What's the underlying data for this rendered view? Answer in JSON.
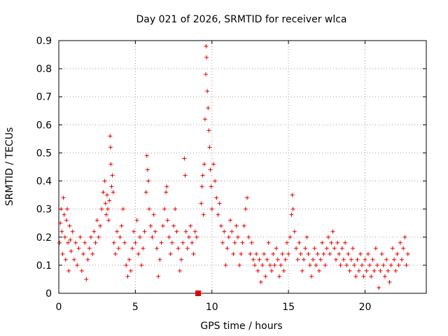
{
  "chart_data": {
    "type": "scatter",
    "title": "Day 021 of 2026, SRMTID for receiver wlca",
    "xlabel": "GPS time / hours",
    "ylabel": "SRMTID / TECUs",
    "xlim": [
      0,
      24
    ],
    "ylim": [
      0,
      0.9
    ],
    "xticks": [
      "0",
      "5",
      "10",
      "15",
      "20"
    ],
    "xtick_values": [
      0,
      5,
      10,
      15,
      20
    ],
    "yticks": [
      "0",
      "0.1",
      "0.2",
      "0.3",
      "0.4",
      "0.5",
      "0.6",
      "0.7",
      "0.8",
      "0.9"
    ],
    "ytick_values": [
      0,
      0.1,
      0.2,
      0.3,
      0.4,
      0.5,
      0.6,
      0.7,
      0.8,
      0.9
    ],
    "grid": true,
    "marker": "+",
    "color": "#e00000",
    "gap_marker": {
      "x": 9.1,
      "y": 0,
      "shape": "square"
    },
    "series": [
      {
        "name": "SRMTID",
        "points": [
          [
            0.05,
            0.18
          ],
          [
            0.1,
            0.25
          ],
          [
            0.15,
            0.3
          ],
          [
            0.2,
            0.22
          ],
          [
            0.25,
            0.14
          ],
          [
            0.3,
            0.34
          ],
          [
            0.35,
            0.28
          ],
          [
            0.4,
            0.2
          ],
          [
            0.45,
            0.12
          ],
          [
            0.5,
            0.26
          ],
          [
            0.55,
            0.3
          ],
          [
            0.6,
            0.18
          ],
          [
            0.65,
            0.08
          ],
          [
            0.7,
            0.24
          ],
          [
            0.75,
            0.19
          ],
          [
            0.8,
            0.15
          ],
          [
            0.9,
            0.22
          ],
          [
            1.0,
            0.12
          ],
          [
            1.1,
            0.18
          ],
          [
            1.2,
            0.1
          ],
          [
            1.3,
            0.16
          ],
          [
            1.4,
            0.2
          ],
          [
            1.5,
            0.08
          ],
          [
            1.6,
            0.14
          ],
          [
            1.7,
            0.18
          ],
          [
            1.8,
            0.05
          ],
          [
            1.9,
            0.12
          ],
          [
            2.0,
            0.16
          ],
          [
            2.1,
            0.2
          ],
          [
            2.2,
            0.14
          ],
          [
            2.3,
            0.22
          ],
          [
            2.4,
            0.18
          ],
          [
            2.5,
            0.26
          ],
          [
            2.6,
            0.2
          ],
          [
            2.7,
            0.24
          ],
          [
            2.8,
            0.3
          ],
          [
            2.9,
            0.36
          ],
          [
            3.0,
            0.4
          ],
          [
            3.05,
            0.32
          ],
          [
            3.1,
            0.28
          ],
          [
            3.15,
            0.35
          ],
          [
            3.2,
            0.3
          ],
          [
            3.25,
            0.26
          ],
          [
            3.3,
            0.33
          ],
          [
            3.35,
            0.56
          ],
          [
            3.38,
            0.52
          ],
          [
            3.4,
            0.46
          ],
          [
            3.45,
            0.38
          ],
          [
            3.5,
            0.42
          ],
          [
            3.55,
            0.36
          ],
          [
            3.6,
            0.18
          ],
          [
            3.7,
            0.14
          ],
          [
            3.8,
            0.22
          ],
          [
            3.9,
            0.16
          ],
          [
            4.0,
            0.2
          ],
          [
            4.1,
            0.24
          ],
          [
            4.2,
            0.3
          ],
          [
            4.3,
            0.18
          ],
          [
            4.4,
            0.1
          ],
          [
            4.5,
            0.06
          ],
          [
            4.6,
            0.12
          ],
          [
            4.7,
            0.08
          ],
          [
            4.8,
            0.16
          ],
          [
            4.9,
            0.22
          ],
          [
            5.0,
            0.18
          ],
          [
            5.1,
            0.26
          ],
          [
            5.2,
            0.14
          ],
          [
            5.3,
            0.2
          ],
          [
            5.4,
            0.1
          ],
          [
            5.5,
            0.16
          ],
          [
            5.6,
            0.22
          ],
          [
            5.7,
            0.36
          ],
          [
            5.75,
            0.49
          ],
          [
            5.8,
            0.44
          ],
          [
            5.85,
            0.4
          ],
          [
            5.9,
            0.3
          ],
          [
            6.0,
            0.24
          ],
          [
            6.1,
            0.2
          ],
          [
            6.2,
            0.28
          ],
          [
            6.3,
            0.22
          ],
          [
            6.4,
            0.16
          ],
          [
            6.5,
            0.06
          ],
          [
            6.6,
            0.12
          ],
          [
            6.7,
            0.18
          ],
          [
            6.8,
            0.24
          ],
          [
            6.9,
            0.3
          ],
          [
            7.0,
            0.36
          ],
          [
            7.05,
            0.38
          ],
          [
            7.1,
            0.26
          ],
          [
            7.2,
            0.2
          ],
          [
            7.3,
            0.14
          ],
          [
            7.4,
            0.18
          ],
          [
            7.5,
            0.24
          ],
          [
            7.6,
            0.3
          ],
          [
            7.7,
            0.22
          ],
          [
            7.8,
            0.16
          ],
          [
            7.9,
            0.08
          ],
          [
            8.0,
            0.12
          ],
          [
            8.1,
            0.18
          ],
          [
            8.2,
            0.48
          ],
          [
            8.25,
            0.42
          ],
          [
            8.3,
            0.22
          ],
          [
            8.4,
            0.16
          ],
          [
            8.5,
            0.2
          ],
          [
            8.6,
            0.24
          ],
          [
            8.7,
            0.18
          ],
          [
            8.8,
            0.14
          ],
          [
            8.9,
            0.22
          ],
          [
            9.0,
            0.2
          ],
          [
            9.3,
            0.32
          ],
          [
            9.35,
            0.38
          ],
          [
            9.4,
            0.42
          ],
          [
            9.45,
            0.28
          ],
          [
            9.5,
            0.46
          ],
          [
            9.55,
            0.62
          ],
          [
            9.6,
            0.78
          ],
          [
            9.62,
            0.88
          ],
          [
            9.65,
            0.84
          ],
          [
            9.7,
            0.72
          ],
          [
            9.75,
            0.66
          ],
          [
            9.8,
            0.58
          ],
          [
            9.85,
            0.52
          ],
          [
            9.9,
            0.44
          ],
          [
            9.95,
            0.38
          ],
          [
            10.0,
            0.3
          ],
          [
            10.1,
            0.46
          ],
          [
            10.2,
            0.4
          ],
          [
            10.3,
            0.34
          ],
          [
            10.4,
            0.28
          ],
          [
            10.5,
            0.32
          ],
          [
            10.6,
            0.24
          ],
          [
            10.7,
            0.18
          ],
          [
            10.8,
            0.22
          ],
          [
            10.9,
            0.1
          ],
          [
            11.0,
            0.16
          ],
          [
            11.1,
            0.2
          ],
          [
            11.2,
            0.26
          ],
          [
            11.3,
            0.22
          ],
          [
            11.4,
            0.14
          ],
          [
            11.5,
            0.18
          ],
          [
            11.6,
            0.24
          ],
          [
            11.7,
            0.2
          ],
          [
            11.8,
            0.1
          ],
          [
            11.9,
            0.14
          ],
          [
            12.0,
            0.18
          ],
          [
            12.1,
            0.24
          ],
          [
            12.2,
            0.3
          ],
          [
            12.3,
            0.34
          ],
          [
            12.4,
            0.2
          ],
          [
            12.5,
            0.14
          ],
          [
            12.6,
            0.18
          ],
          [
            12.7,
            0.12
          ],
          [
            12.8,
            0.1
          ],
          [
            12.9,
            0.14
          ],
          [
            13.0,
            0.08
          ],
          [
            13.1,
            0.12
          ],
          [
            13.2,
            0.04
          ],
          [
            13.3,
            0.1
          ],
          [
            13.4,
            0.14
          ],
          [
            13.5,
            0.06
          ],
          [
            13.6,
            0.12
          ],
          [
            13.7,
            0.18
          ],
          [
            13.8,
            0.1
          ],
          [
            13.9,
            0.08
          ],
          [
            14.0,
            0.14
          ],
          [
            14.1,
            0.1
          ],
          [
            14.2,
            0.16
          ],
          [
            14.3,
            0.12
          ],
          [
            14.4,
            0.06
          ],
          [
            14.5,
            0.1
          ],
          [
            14.6,
            0.14
          ],
          [
            14.7,
            0.08
          ],
          [
            14.8,
            0.12
          ],
          [
            14.9,
            0.18
          ],
          [
            15.0,
            0.14
          ],
          [
            15.1,
            0.2
          ],
          [
            15.2,
            0.28
          ],
          [
            15.25,
            0.35
          ],
          [
            15.3,
            0.3
          ],
          [
            15.4,
            0.22
          ],
          [
            15.5,
            0.16
          ],
          [
            15.6,
            0.12
          ],
          [
            15.7,
            0.18
          ],
          [
            15.8,
            0.14
          ],
          [
            15.9,
            0.08
          ],
          [
            16.0,
            0.12
          ],
          [
            16.1,
            0.16
          ],
          [
            16.2,
            0.2
          ],
          [
            16.3,
            0.14
          ],
          [
            16.4,
            0.1
          ],
          [
            16.5,
            0.06
          ],
          [
            16.6,
            0.12
          ],
          [
            16.7,
            0.16
          ],
          [
            16.8,
            0.1
          ],
          [
            16.9,
            0.14
          ],
          [
            17.0,
            0.08
          ],
          [
            17.1,
            0.12
          ],
          [
            17.2,
            0.18
          ],
          [
            17.3,
            0.14
          ],
          [
            17.4,
            0.1
          ],
          [
            17.5,
            0.16
          ],
          [
            17.6,
            0.2
          ],
          [
            17.7,
            0.14
          ],
          [
            17.8,
            0.18
          ],
          [
            17.9,
            0.22
          ],
          [
            18.0,
            0.16
          ],
          [
            18.1,
            0.12
          ],
          [
            18.2,
            0.18
          ],
          [
            18.3,
            0.14
          ],
          [
            18.4,
            0.1
          ],
          [
            18.5,
            0.16
          ],
          [
            18.6,
            0.12
          ],
          [
            18.7,
            0.18
          ],
          [
            18.8,
            0.1
          ],
          [
            18.9,
            0.14
          ],
          [
            19.0,
            0.08
          ],
          [
            19.1,
            0.12
          ],
          [
            19.2,
            0.16
          ],
          [
            19.3,
            0.1
          ],
          [
            19.4,
            0.06
          ],
          [
            19.5,
            0.12
          ],
          [
            19.6,
            0.08
          ],
          [
            19.7,
            0.14
          ],
          [
            19.8,
            0.1
          ],
          [
            19.9,
            0.06
          ],
          [
            20.0,
            0.12
          ],
          [
            20.1,
            0.08
          ],
          [
            20.2,
            0.14
          ],
          [
            20.3,
            0.1
          ],
          [
            20.4,
            0.06
          ],
          [
            20.5,
            0.12
          ],
          [
            20.6,
            0.08
          ],
          [
            20.7,
            0.16
          ],
          [
            20.8,
            0.1
          ],
          [
            20.9,
            0.02
          ],
          [
            21.0,
            0.08
          ],
          [
            21.1,
            0.14
          ],
          [
            21.2,
            0.1
          ],
          [
            21.3,
            0.06
          ],
          [
            21.4,
            0.12
          ],
          [
            21.5,
            0.08
          ],
          [
            21.6,
            0.04
          ],
          [
            21.7,
            0.1
          ],
          [
            21.8,
            0.16
          ],
          [
            21.9,
            0.12
          ],
          [
            22.0,
            0.08
          ],
          [
            22.1,
            0.14
          ],
          [
            22.2,
            0.1
          ],
          [
            22.3,
            0.18
          ],
          [
            22.4,
            0.12
          ],
          [
            22.5,
            0.16
          ],
          [
            22.6,
            0.2
          ],
          [
            22.7,
            0.1
          ],
          [
            22.8,
            0.14
          ]
        ]
      }
    ]
  }
}
